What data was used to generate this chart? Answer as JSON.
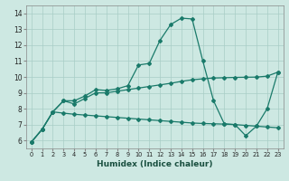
{
  "xlabel": "Humidex (Indice chaleur)",
  "bg_color": "#cde8e2",
  "grid_color": "#a8cdc6",
  "line_color": "#1a7a6a",
  "xlim": [
    -0.5,
    23.5
  ],
  "ylim": [
    5.5,
    14.5
  ],
  "xticks": [
    0,
    1,
    2,
    3,
    4,
    5,
    6,
    7,
    8,
    9,
    10,
    11,
    12,
    13,
    14,
    15,
    16,
    17,
    18,
    19,
    20,
    21,
    22,
    23
  ],
  "yticks": [
    6,
    7,
    8,
    9,
    10,
    11,
    12,
    13,
    14
  ],
  "lines": [
    {
      "x": [
        0,
        1,
        2,
        3,
        4,
        5,
        6,
        7,
        8,
        9,
        10,
        11,
        12,
        13,
        14,
        15,
        16,
        17,
        18,
        19,
        20,
        21,
        22,
        23
      ],
      "y": [
        5.9,
        6.7,
        7.8,
        8.5,
        8.5,
        8.8,
        9.2,
        9.15,
        9.25,
        9.45,
        10.75,
        10.85,
        12.3,
        13.3,
        13.7,
        13.65,
        11.0,
        8.5,
        7.05,
        7.0,
        6.3,
        6.9,
        8.0,
        10.3
      ]
    },
    {
      "x": [
        0,
        1,
        2,
        3,
        4,
        5,
        6,
        7,
        8,
        9,
        10,
        11,
        12,
        13,
        14,
        15,
        16,
        17,
        18,
        19,
        20,
        21,
        22,
        23
      ],
      "y": [
        5.9,
        6.7,
        7.8,
        8.5,
        8.3,
        8.65,
        9.0,
        9.0,
        9.1,
        9.2,
        9.3,
        9.4,
        9.5,
        9.6,
        9.72,
        9.82,
        9.88,
        9.93,
        9.95,
        9.97,
        9.98,
        9.99,
        10.05,
        10.3
      ]
    },
    {
      "x": [
        0,
        1,
        2,
        3,
        4,
        5,
        6,
        7,
        8,
        9,
        10,
        11,
        12,
        13,
        14,
        15,
        16,
        17,
        18,
        19,
        20,
        21,
        22,
        23
      ],
      "y": [
        5.9,
        6.7,
        7.8,
        7.72,
        7.65,
        7.6,
        7.55,
        7.5,
        7.45,
        7.4,
        7.35,
        7.3,
        7.25,
        7.2,
        7.15,
        7.1,
        7.07,
        7.05,
        7.03,
        7.0,
        6.95,
        6.9,
        6.85,
        6.8
      ]
    }
  ]
}
